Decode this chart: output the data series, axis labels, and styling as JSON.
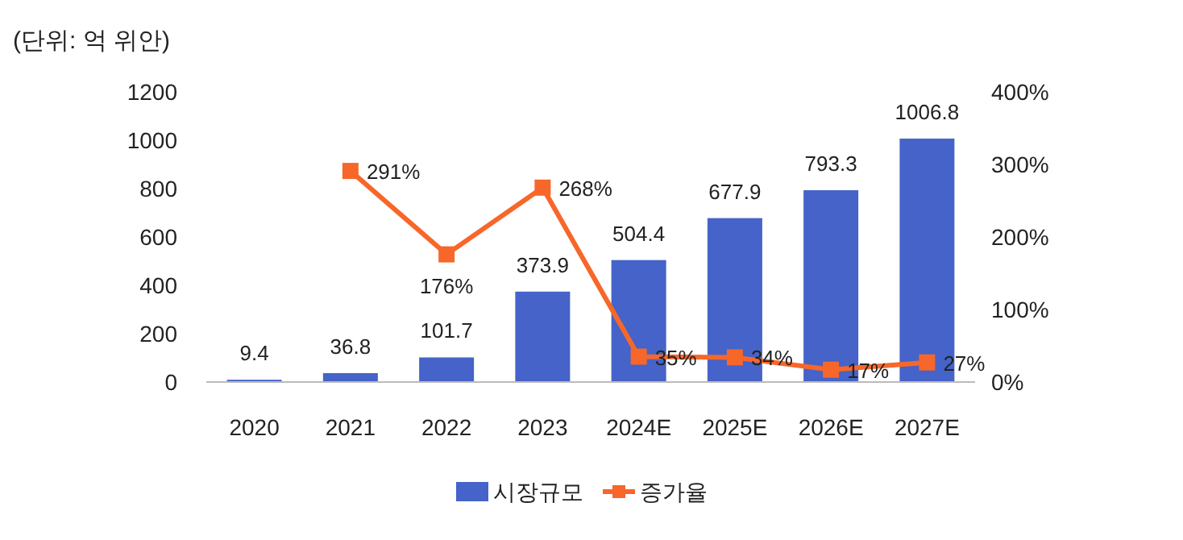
{
  "chart_data": {
    "type": "bar",
    "ylabel": "(단위: 억 위안)",
    "categories": [
      "2020",
      "2021",
      "2022",
      "2023",
      "2024E",
      "2025E",
      "2026E",
      "2027E"
    ],
    "series": [
      {
        "name": "시장규모",
        "color": "#4563c8",
        "values": [
          9.4,
          36.8,
          101.7,
          373.9,
          504.4,
          677.9,
          793.3,
          1006.8
        ],
        "value_labels": [
          "9.4",
          "36.8",
          "101.7",
          "373.9",
          "504.4",
          "677.9",
          "793.3",
          "1006.8"
        ]
      },
      {
        "name": "증가율",
        "type": "line",
        "axis": "y2",
        "color": "#f7672a",
        "marker": "square",
        "line_style": "solid",
        "values": [
          null,
          291,
          176,
          268,
          35,
          34,
          17,
          27
        ],
        "value_labels": [
          null,
          "291%",
          "176%",
          "268%",
          "35%",
          "34%",
          "17%",
          "27%"
        ]
      }
    ],
    "ylim": [
      0,
      1200
    ],
    "yticks": [
      0,
      200,
      400,
      600,
      800,
      1000,
      1200
    ],
    "y2lim": [
      0,
      400
    ],
    "y2ticks": [
      {
        "value": 0,
        "label": "0%"
      },
      {
        "value": 100,
        "label": "100%"
      },
      {
        "value": 200,
        "label": "200%"
      },
      {
        "value": 300,
        "label": "300%"
      },
      {
        "value": 400,
        "label": "400%"
      }
    ],
    "legend": "bottom",
    "grid": false
  }
}
